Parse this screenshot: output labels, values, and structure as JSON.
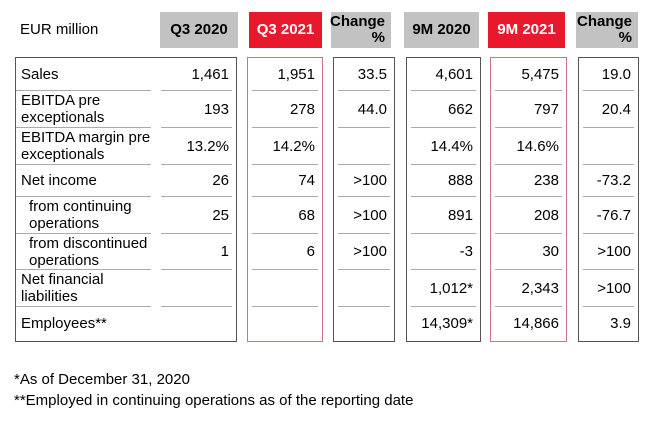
{
  "unit_label": "EUR million",
  "column_headers": [
    {
      "label": "Q3 2020",
      "highlight": false
    },
    {
      "label": "Q3 2021",
      "highlight": true
    },
    {
      "label": "Change\n%",
      "highlight": false
    },
    {
      "label": "9M 2020",
      "highlight": false
    },
    {
      "label": "9M 2021",
      "highlight": true
    },
    {
      "label": "Change\n%",
      "highlight": false
    }
  ],
  "rows": [
    {
      "label": "Sales",
      "indent": false,
      "values": [
        "1,461",
        "1,951",
        "33.5",
        "4,601",
        "5,475",
        "19.0"
      ]
    },
    {
      "label": "EBITDA pre exceptionals",
      "indent": false,
      "values": [
        "193",
        "278",
        "44.0",
        "662",
        "797",
        "20.4"
      ]
    },
    {
      "label": "EBITDA margin pre exceptionals",
      "indent": false,
      "values": [
        "13.2%",
        "14.2%",
        "",
        "14.4%",
        "14.6%",
        ""
      ]
    },
    {
      "label": "Net income",
      "indent": false,
      "values": [
        "26",
        "74",
        ">100",
        "888",
        "238",
        "-73.2"
      ]
    },
    {
      "label": "from continuing operations",
      "indent": true,
      "values": [
        "25",
        "68",
        ">100",
        "891",
        "208",
        "-76.7"
      ]
    },
    {
      "label": "from discontinued operations",
      "indent": true,
      "values": [
        "1",
        "6",
        ">100",
        "-3",
        "30",
        ">100"
      ]
    },
    {
      "label": "Net financial liabilities",
      "indent": false,
      "values": [
        "",
        "",
        "",
        "1,012*",
        "2,343",
        ">100"
      ]
    },
    {
      "label": "Employees**",
      "indent": false,
      "values": [
        "",
        "",
        "",
        "14,309*",
        "14,866",
        "3.9"
      ]
    }
  ],
  "footnotes": [
    "*As of December 31, 2020",
    "**Employed in continuing operations as of the reporting date"
  ],
  "colors": {
    "highlight_red": "#e8192c",
    "header_gray": "#c2c2c2",
    "box_border_dark": "#545454",
    "box_border_red": "#d2727e",
    "row_divider_gray": "#ababab",
    "text": "#000000"
  }
}
